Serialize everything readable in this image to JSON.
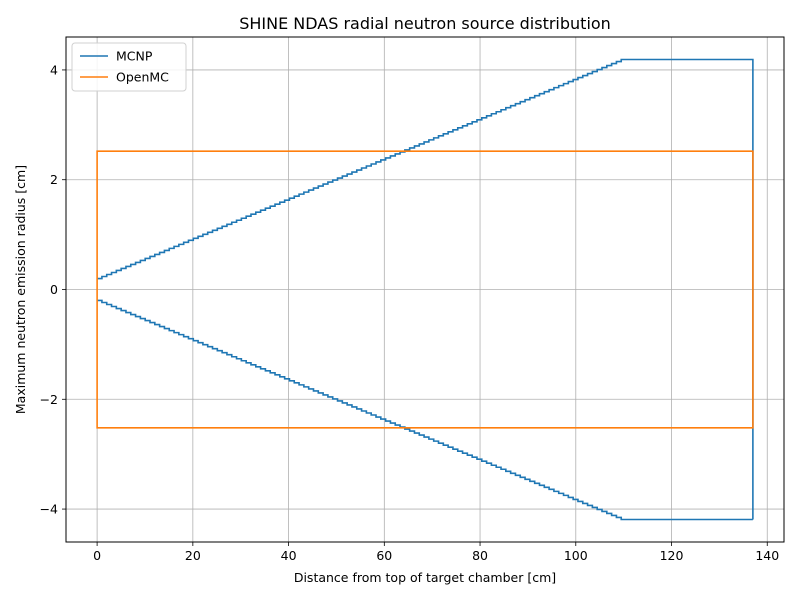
{
  "chart_data": {
    "type": "line",
    "title": "SHINE NDAS radial neutron source distribution",
    "xlabel": "Distance from top of target chamber [cm]",
    "ylabel": "Maximum neutron emission radius [cm]",
    "xlim": [
      -6.5,
      143.5
    ],
    "ylim": [
      -4.6,
      4.6
    ],
    "x_ticks": [
      0,
      20,
      40,
      60,
      80,
      100,
      120,
      140
    ],
    "x_tick_labels": [
      "0",
      "20",
      "40",
      "60",
      "80",
      "100",
      "120",
      "140"
    ],
    "y_ticks": [
      -4,
      -2,
      0,
      2,
      4
    ],
    "y_tick_labels": [
      "−4",
      "−2",
      "0",
      "2",
      "4"
    ],
    "grid": true,
    "legend_position": "top-left",
    "series": [
      {
        "name": "MCNP",
        "color": "#1f77b4",
        "style": "step",
        "x_start": 0,
        "x_ramp_end": 110.5,
        "x_end": 137,
        "r_start": 0.2,
        "r_max": 4.19,
        "n_steps": 110,
        "symmetric": true
      },
      {
        "name": "OpenMC",
        "color": "#ff7f0e",
        "style": "rectangle",
        "x": [
          0,
          137
        ],
        "r": 2.52,
        "symmetric": true
      }
    ]
  }
}
